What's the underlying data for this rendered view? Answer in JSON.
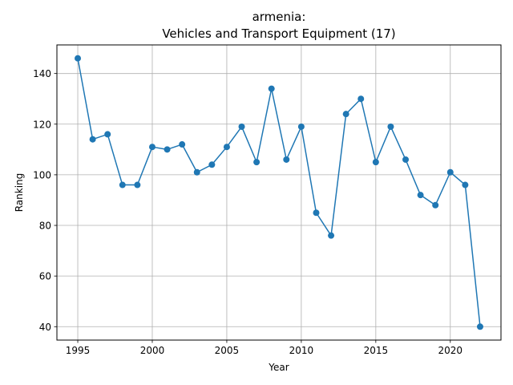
{
  "chart_data": {
    "type": "line",
    "title_line1": "armenia:",
    "title_line2": "Vehicles and Transport Equipment (17)",
    "xlabel": "Year",
    "ylabel": "Ranking",
    "xlim": [
      1993.6,
      2023.4
    ],
    "ylim": [
      34.7,
      151.3
    ],
    "xticks": [
      1995,
      2000,
      2005,
      2010,
      2015,
      2020
    ],
    "yticks": [
      40,
      60,
      80,
      100,
      120,
      140
    ],
    "grid": true,
    "line_color": "#1f77b4",
    "x": [
      1995,
      1996,
      1997,
      1998,
      1999,
      2000,
      2001,
      2002,
      2003,
      2004,
      2005,
      2006,
      2007,
      2008,
      2009,
      2010,
      2011,
      2012,
      2013,
      2014,
      2015,
      2016,
      2017,
      2018,
      2019,
      2020,
      2021,
      2022
    ],
    "values": [
      146,
      114,
      116,
      96,
      96,
      111,
      110,
      112,
      101,
      104,
      111,
      119,
      105,
      134,
      106,
      119,
      85,
      76,
      124,
      130,
      105,
      119,
      106,
      92,
      88,
      101,
      96,
      40
    ]
  }
}
